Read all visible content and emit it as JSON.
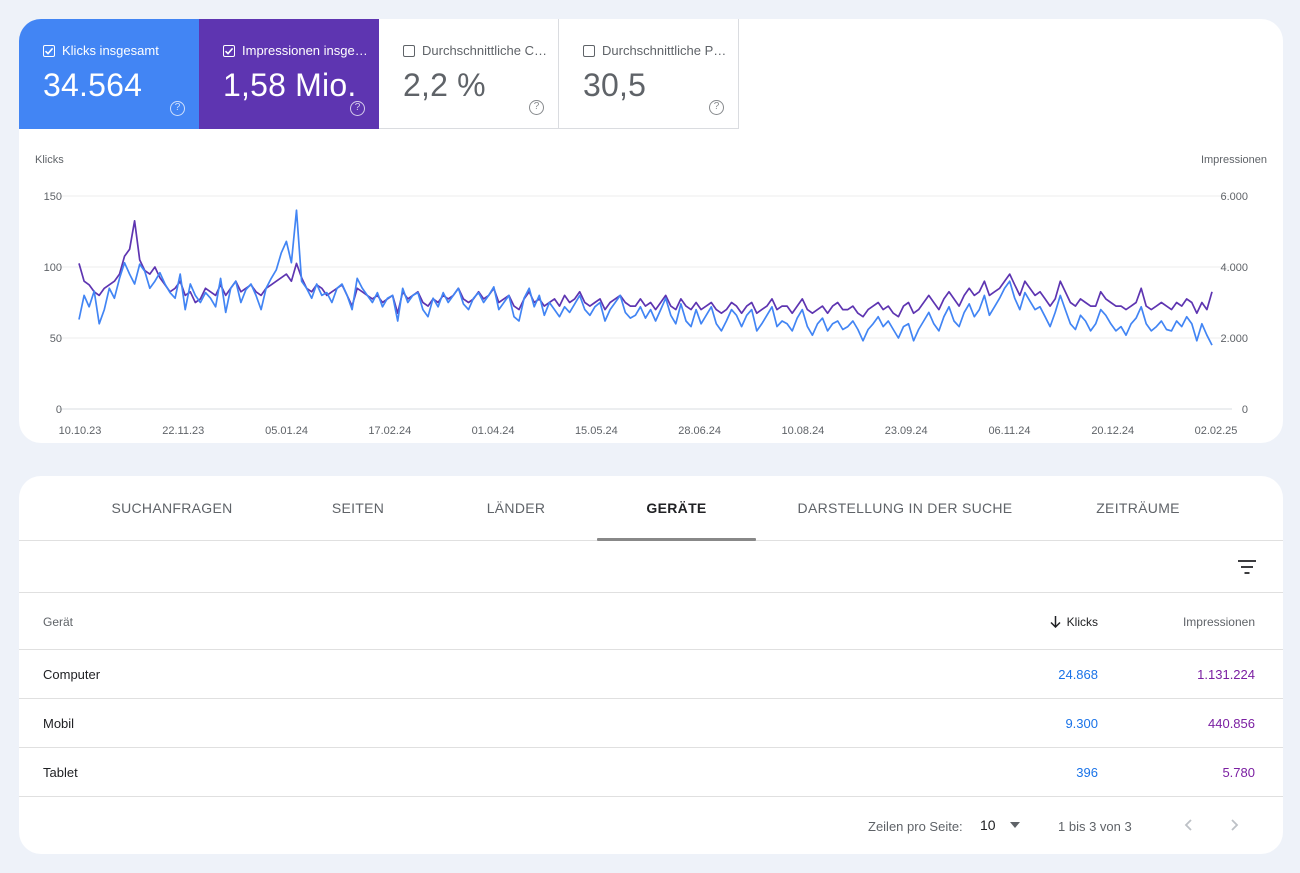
{
  "metrics": [
    {
      "label": "Klicks insgesamt",
      "value": "34.564",
      "checked": true,
      "color": "#4285f4"
    },
    {
      "label": "Impressionen insgesamt",
      "value": "1,58 Mio.",
      "checked": true,
      "color": "#5e35b1"
    },
    {
      "label": "Durchschnittliche CTR",
      "value": "2,2 %",
      "checked": false,
      "color": "#ffffff"
    },
    {
      "label": "Durchschnittliche Position",
      "value": "30,5",
      "checked": false,
      "color": "#ffffff"
    }
  ],
  "chart": {
    "left_axis_title": "Klicks",
    "right_axis_title": "Impressionen",
    "left_ticks": [
      "150",
      "100",
      "50",
      "0"
    ],
    "right_ticks": [
      "6.000",
      "4.000",
      "2.000",
      "0"
    ],
    "x_labels": [
      "10.10.23",
      "22.11.23",
      "05.01.24",
      "17.02.24",
      "01.04.24",
      "15.05.24",
      "28.06.24",
      "10.08.24",
      "23.09.24",
      "06.11.24",
      "20.12.24",
      "02.02.25"
    ]
  },
  "chart_data": {
    "type": "line",
    "x_range": [
      "10.10.23",
      "05.02.25"
    ],
    "series": [
      {
        "name": "Klicks",
        "axis": "left",
        "color": "#4285f4",
        "values": [
          63,
          80,
          72,
          83,
          60,
          70,
          85,
          78,
          92,
          103,
          95,
          88,
          102,
          97,
          85,
          90,
          96,
          88,
          82,
          78,
          95,
          70,
          88,
          80,
          75,
          82,
          78,
          72,
          92,
          68,
          85,
          90,
          75,
          84,
          88,
          80,
          70,
          85,
          92,
          98,
          110,
          118,
          103,
          140,
          90,
          85,
          78,
          88,
          80,
          82,
          75,
          85,
          88,
          80,
          70,
          92,
          85,
          80,
          75,
          82,
          72,
          78,
          80,
          62,
          85,
          75,
          80,
          82,
          70,
          65,
          78,
          72,
          82,
          75,
          80,
          85,
          74,
          70,
          78,
          82,
          75,
          80,
          86,
          70,
          75,
          80,
          65,
          62,
          78,
          85,
          72,
          80,
          66,
          75,
          70,
          65,
          72,
          68,
          74,
          80,
          70,
          66,
          72,
          75,
          62,
          70,
          75,
          80,
          68,
          64,
          66,
          72,
          64,
          70,
          62,
          70,
          78,
          66,
          60,
          74,
          62,
          58,
          70,
          60,
          66,
          72,
          60,
          55,
          62,
          70,
          66,
          58,
          66,
          70,
          55,
          60,
          66,
          72,
          58,
          62,
          60,
          55,
          64,
          70,
          58,
          52,
          60,
          64,
          55,
          60,
          62,
          56,
          58,
          62,
          56,
          48,
          56,
          60,
          65,
          58,
          62,
          56,
          50,
          58,
          60,
          48,
          56,
          62,
          68,
          60,
          55,
          65,
          72,
          62,
          58,
          68,
          74,
          65,
          70,
          80,
          66,
          72,
          78,
          85,
          90,
          78,
          70,
          82,
          76,
          70,
          72,
          65,
          58,
          68,
          80,
          70,
          60,
          56,
          66,
          62,
          55,
          60,
          70,
          66,
          60,
          55,
          58,
          52,
          60,
          64,
          72,
          60,
          55,
          58,
          62,
          56,
          55,
          62,
          58,
          65,
          60,
          48,
          60,
          52,
          45
        ]
      },
      {
        "name": "Impressionen",
        "axis": "right",
        "color": "#5e35b1",
        "values": [
          4100,
          3600,
          3500,
          3300,
          3200,
          3400,
          3500,
          3600,
          3800,
          4300,
          4500,
          5300,
          4200,
          3900,
          3800,
          4000,
          3700,
          3500,
          3300,
          3400,
          3600,
          3200,
          3300,
          3000,
          3100,
          3400,
          3300,
          3200,
          3500,
          3200,
          3400,
          3600,
          3300,
          3400,
          3500,
          3300,
          3200,
          3400,
          3500,
          3600,
          3700,
          3800,
          3600,
          4100,
          3700,
          3400,
          3300,
          3500,
          3400,
          3200,
          3300,
          3400,
          3500,
          3200,
          2900,
          3400,
          3300,
          3200,
          3100,
          3200,
          3000,
          3100,
          3200,
          2700,
          3300,
          3100,
          3200,
          3300,
          3000,
          2900,
          3100,
          3000,
          3200,
          3100,
          3200,
          3400,
          3100,
          3000,
          3100,
          3300,
          3100,
          3200,
          3400,
          3000,
          3100,
          3200,
          2900,
          2800,
          3100,
          3300,
          3000,
          3100,
          2900,
          3000,
          3100,
          2900,
          3200,
          3000,
          3100,
          3300,
          3000,
          2900,
          3000,
          3100,
          2800,
          3000,
          3100,
          3200,
          3000,
          2900,
          2900,
          3100,
          2900,
          3000,
          2800,
          3000,
          3200,
          2900,
          2800,
          3100,
          2900,
          2800,
          3000,
          2800,
          2900,
          3000,
          2800,
          2700,
          2800,
          3000,
          2900,
          2700,
          2900,
          3000,
          2700,
          2800,
          2900,
          3100,
          2800,
          2900,
          2900,
          2700,
          2900,
          3100,
          2800,
          2700,
          2800,
          2900,
          2700,
          2900,
          3000,
          2800,
          2800,
          2900,
          2700,
          2600,
          2800,
          2900,
          3000,
          2800,
          2900,
          2700,
          2600,
          2900,
          3000,
          2700,
          2800,
          3000,
          3200,
          3000,
          2800,
          3100,
          3300,
          3100,
          2900,
          3200,
          3400,
          3200,
          3300,
          3600,
          3200,
          3300,
          3400,
          3600,
          3800,
          3500,
          3200,
          3600,
          3400,
          3200,
          3300,
          3100,
          2900,
          3100,
          3600,
          3300,
          3000,
          2900,
          3100,
          3000,
          2900,
          2900,
          3300,
          3100,
          3000,
          2900,
          2900,
          2800,
          2900,
          3000,
          3400,
          2900,
          2800,
          2900,
          3000,
          2900,
          2800,
          3000,
          2900,
          3100,
          3000,
          2700,
          3000,
          2800,
          3300
        ]
      }
    ],
    "left_ylim": [
      0,
      150
    ],
    "right_ylim": [
      0,
      6000
    ]
  },
  "tabs": [
    "SUCHANFRAGEN",
    "SEITEN",
    "LÄNDER",
    "GERÄTE",
    "DARSTELLUNG IN DER SUCHE",
    "ZEITRÄUME"
  ],
  "active_tab": "GERÄTE",
  "table": {
    "headers": {
      "device": "Gerät",
      "clicks": "Klicks",
      "impressions": "Impressionen"
    },
    "rows": [
      {
        "device": "Computer",
        "clicks": "24.868",
        "impressions": "1.131.224"
      },
      {
        "device": "Mobil",
        "clicks": "9.300",
        "impressions": "440.856"
      },
      {
        "device": "Tablet",
        "clicks": "396",
        "impressions": "5.780"
      }
    ]
  },
  "pagination": {
    "rows_per_page_label": "Zeilen pro Seite:",
    "rows_per_page": "10",
    "range": "1 bis 3 von 3"
  }
}
